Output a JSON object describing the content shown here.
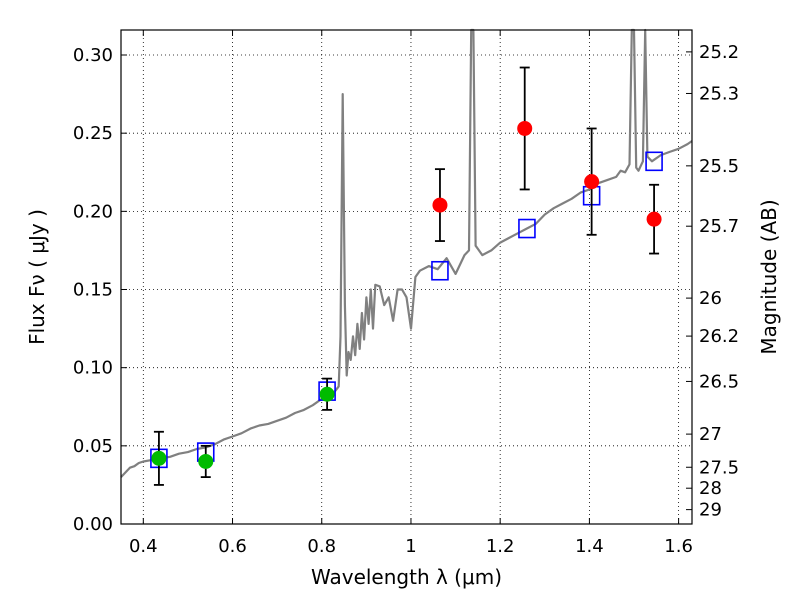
{
  "chart_data": {
    "type": "scatter",
    "title": "",
    "xlabel": "Wavelength  λ (μm)",
    "ylabel": "Flux  Fν  ( μJy )",
    "ylabel_right": "Magnitude (AB)",
    "xlim": [
      0.35,
      1.63
    ],
    "ylim": [
      0.0,
      0.316
    ],
    "x_ticks": [
      0.4,
      0.6,
      0.8,
      1.0,
      1.2,
      1.4,
      1.6
    ],
    "x_tick_labels": [
      "0.4",
      "0.6",
      "0.8",
      "1",
      "1.2",
      "1.4",
      "1.6"
    ],
    "y_ticks": [
      0.0,
      0.05,
      0.1,
      0.15,
      0.2,
      0.25,
      0.3
    ],
    "y_tick_labels": [
      "0.00",
      "0.05",
      "0.10",
      "0.15",
      "0.20",
      "0.25",
      "0.30"
    ],
    "right_ticks": [
      {
        "flux": 0.0092,
        "label": "29"
      },
      {
        "flux": 0.0229,
        "label": "28"
      },
      {
        "flux": 0.0363,
        "label": "27.5"
      },
      {
        "flux": 0.0575,
        "label": "27"
      },
      {
        "flux": 0.0912,
        "label": "26.5"
      },
      {
        "flux": 0.1202,
        "label": "26.2"
      },
      {
        "flux": 0.1445,
        "label": "26"
      },
      {
        "flux": 0.1905,
        "label": "25.7"
      },
      {
        "flux": 0.2291,
        "label": "25.5"
      },
      {
        "flux": 0.2754,
        "label": "25.3"
      },
      {
        "flux": 0.302,
        "label": "25.2"
      }
    ],
    "grid": true,
    "colors": {
      "model": "#808080",
      "model_photometry": "#0000ff",
      "detected_optical": "#00bb00",
      "detected_nir": "#ff0000",
      "error_bars": "#000000"
    },
    "series": [
      {
        "kind": "line",
        "points": [
          [
            0.35,
            0.03
          ],
          [
            0.36,
            0.033
          ],
          [
            0.37,
            0.036
          ],
          [
            0.38,
            0.037
          ],
          [
            0.39,
            0.039
          ],
          [
            0.4,
            0.04
          ],
          [
            0.42,
            0.041
          ],
          [
            0.44,
            0.042
          ],
          [
            0.46,
            0.043
          ],
          [
            0.48,
            0.045
          ],
          [
            0.5,
            0.046
          ],
          [
            0.52,
            0.048
          ],
          [
            0.54,
            0.049
          ],
          [
            0.56,
            0.051
          ],
          [
            0.58,
            0.054
          ],
          [
            0.6,
            0.056
          ],
          [
            0.62,
            0.058
          ],
          [
            0.64,
            0.061
          ],
          [
            0.66,
            0.063
          ],
          [
            0.68,
            0.064
          ],
          [
            0.7,
            0.066
          ],
          [
            0.72,
            0.068
          ],
          [
            0.74,
            0.071
          ],
          [
            0.76,
            0.073
          ],
          [
            0.78,
            0.076
          ],
          [
            0.8,
            0.08
          ],
          [
            0.82,
            0.083
          ],
          [
            0.83,
            0.085
          ],
          [
            0.838,
            0.088
          ],
          [
            0.842,
            0.12
          ],
          [
            0.847,
            0.275
          ],
          [
            0.852,
            0.14
          ],
          [
            0.856,
            0.095
          ],
          [
            0.86,
            0.11
          ],
          [
            0.865,
            0.105
          ],
          [
            0.87,
            0.12
          ],
          [
            0.875,
            0.108
          ],
          [
            0.88,
            0.128
          ],
          [
            0.885,
            0.112
          ],
          [
            0.89,
            0.135
          ],
          [
            0.895,
            0.118
          ],
          [
            0.9,
            0.145
          ],
          [
            0.905,
            0.128
          ],
          [
            0.91,
            0.15
          ],
          [
            0.915,
            0.125
          ],
          [
            0.92,
            0.153
          ],
          [
            0.93,
            0.152
          ],
          [
            0.94,
            0.14
          ],
          [
            0.95,
            0.145
          ],
          [
            0.96,
            0.13
          ],
          [
            0.97,
            0.15
          ],
          [
            0.98,
            0.15
          ],
          [
            0.99,
            0.145
          ],
          [
            1.0,
            0.125
          ],
          [
            1.01,
            0.158
          ],
          [
            1.02,
            0.162
          ],
          [
            1.04,
            0.165
          ],
          [
            1.06,
            0.163
          ],
          [
            1.08,
            0.17
          ],
          [
            1.1,
            0.16
          ],
          [
            1.12,
            0.172
          ],
          [
            1.13,
            0.175
          ],
          [
            1.135,
            0.32
          ],
          [
            1.14,
            0.32
          ],
          [
            1.145,
            0.178
          ],
          [
            1.15,
            0.176
          ],
          [
            1.16,
            0.172
          ],
          [
            1.18,
            0.175
          ],
          [
            1.2,
            0.18
          ],
          [
            1.22,
            0.183
          ],
          [
            1.24,
            0.186
          ],
          [
            1.26,
            0.189
          ],
          [
            1.28,
            0.192
          ],
          [
            1.3,
            0.198
          ],
          [
            1.32,
            0.202
          ],
          [
            1.34,
            0.205
          ],
          [
            1.36,
            0.208
          ],
          [
            1.38,
            0.212
          ],
          [
            1.4,
            0.214
          ],
          [
            1.42,
            0.218
          ],
          [
            1.44,
            0.22
          ],
          [
            1.46,
            0.222
          ],
          [
            1.47,
            0.226
          ],
          [
            1.48,
            0.225
          ],
          [
            1.49,
            0.23
          ],
          [
            1.495,
            0.32
          ],
          [
            1.5,
            0.32
          ],
          [
            1.505,
            0.228
          ],
          [
            1.51,
            0.226
          ],
          [
            1.52,
            0.232
          ],
          [
            1.525,
            0.32
          ],
          [
            1.53,
            0.235
          ],
          [
            1.54,
            0.232
          ],
          [
            1.56,
            0.236
          ],
          [
            1.58,
            0.238
          ],
          [
            1.6,
            0.24
          ],
          [
            1.62,
            0.243
          ],
          [
            1.63,
            0.245
          ]
        ]
      },
      {
        "kind": "squares",
        "points": [
          [
            0.435,
            0.042
          ],
          [
            0.54,
            0.046
          ],
          [
            0.812,
            0.085
          ],
          [
            1.065,
            0.162
          ],
          [
            1.26,
            0.189
          ],
          [
            1.405,
            0.21
          ],
          [
            1.545,
            0.232
          ]
        ]
      },
      {
        "kind": "points",
        "points": [
          {
            "x": 0.435,
            "y": 0.042,
            "err": 0.017,
            "group": "optical"
          },
          {
            "x": 0.54,
            "y": 0.04,
            "err": 0.01,
            "group": "optical"
          },
          {
            "x": 0.812,
            "y": 0.083,
            "err": 0.01,
            "group": "optical"
          },
          {
            "x": 1.065,
            "y": 0.204,
            "err": 0.023,
            "group": "nir"
          },
          {
            "x": 1.255,
            "y": 0.253,
            "err": 0.039,
            "group": "nir"
          },
          {
            "x": 1.405,
            "y": 0.219,
            "err": 0.034,
            "group": "nir"
          },
          {
            "x": 1.545,
            "y": 0.195,
            "err": 0.022,
            "group": "nir"
          }
        ]
      }
    ]
  }
}
